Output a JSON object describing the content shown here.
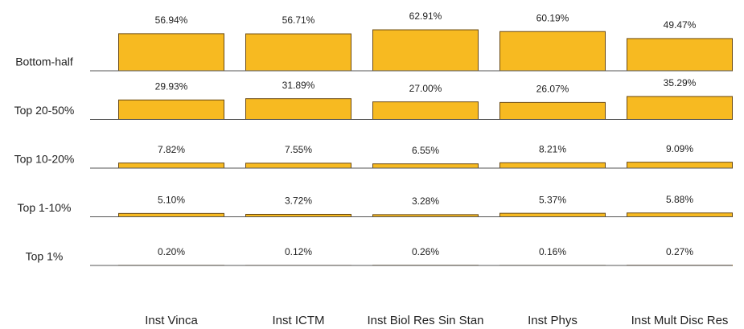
{
  "chart_data": {
    "type": "bar",
    "categories": [
      "Inst Vinca",
      "Inst ICTM",
      "Inst Biol Res Sin Stan",
      "Inst Phys",
      "Inst Mult Disc Res"
    ],
    "color": "#f7ba21",
    "series": [
      {
        "name": "Bottom-half",
        "values": [
          56.94,
          56.71,
          62.91,
          60.19,
          49.47
        ],
        "value_labels": [
          "56.94%",
          "56.71%",
          "62.91%",
          "60.19%",
          "49.47%"
        ]
      },
      {
        "name": "Top 20-50%",
        "values": [
          29.93,
          31.89,
          27.0,
          26.07,
          35.29
        ],
        "value_labels": [
          "29.93%",
          "31.89%",
          "27.00%",
          "26.07%",
          "35.29%"
        ]
      },
      {
        "name": "Top 10-20%",
        "values": [
          7.82,
          7.55,
          6.55,
          8.21,
          9.09
        ],
        "value_labels": [
          "7.82%",
          "7.55%",
          "6.55%",
          "8.21%",
          "9.09%"
        ]
      },
      {
        "name": "Top 1-10%",
        "values": [
          5.1,
          3.72,
          3.28,
          5.37,
          5.88
        ],
        "value_labels": [
          "5.10%",
          "3.72%",
          "3.28%",
          "5.37%",
          "5.88%"
        ]
      },
      {
        "name": "Top 1%",
        "values": [
          0.2,
          0.12,
          0.26,
          0.16,
          0.27
        ],
        "value_labels": [
          "0.20%",
          "0.12%",
          "0.26%",
          "0.16%",
          "0.27%"
        ]
      }
    ]
  }
}
